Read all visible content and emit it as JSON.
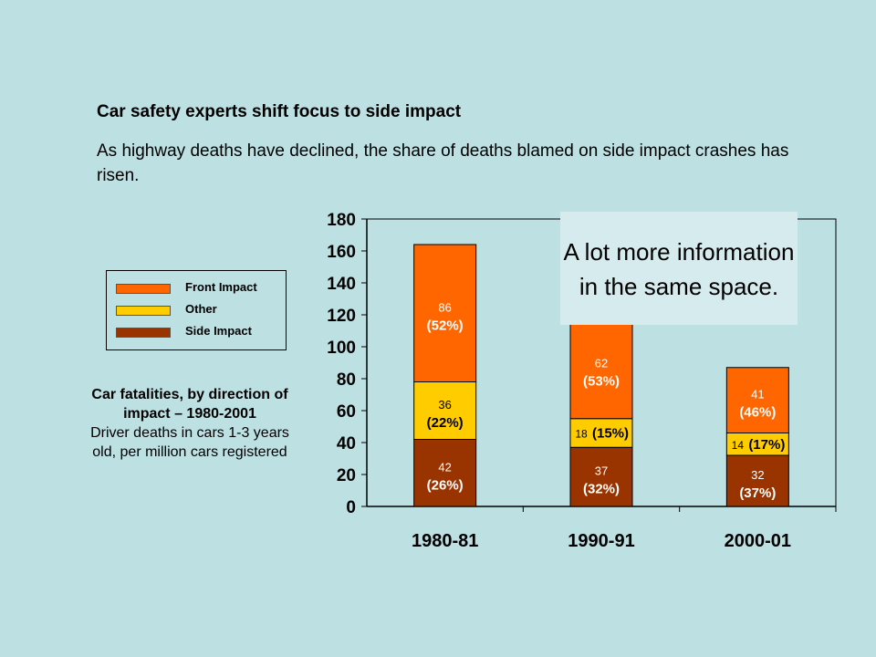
{
  "headline": "Car safety experts shift focus to side impact",
  "subtext": "As highway deaths have declined, the share of deaths blamed on side impact crashes has risen.",
  "legend": [
    {
      "label": "Front Impact",
      "color": "#ff6600"
    },
    {
      "label": "Other",
      "color": "#ffcc00"
    },
    {
      "label": "Side Impact",
      "color": "#993300"
    }
  ],
  "caption": {
    "title": "Car fatalities, by direction of impact – 1980-2001",
    "body": "Driver deaths in cars 1-3 years old, per million cars registered"
  },
  "callout": "A lot more information in the same space.",
  "chart_data": {
    "type": "bar",
    "stacked": true,
    "categories": [
      "1980-81",
      "1990-91",
      "2000-01"
    ],
    "series": [
      {
        "name": "Side Impact",
        "color": "#993300",
        "values": [
          42,
          37,
          32
        ],
        "labels": [
          "42",
          "37",
          "32"
        ],
        "pct_labels": [
          "(26%)",
          "(32%)",
          "(37%)"
        ]
      },
      {
        "name": "Other",
        "color": "#ffcc00",
        "values": [
          36,
          18,
          14
        ],
        "labels": [
          "36",
          "18",
          "14"
        ],
        "pct_labels": [
          "(22%)",
          "(15%)",
          "(17%)"
        ]
      },
      {
        "name": "Front Impact",
        "color": "#ff6600",
        "values": [
          86,
          62,
          41
        ],
        "labels": [
          "86",
          "62",
          "41"
        ],
        "pct_labels": [
          "(52%)",
          "(53%)",
          "(46%)"
        ]
      }
    ],
    "ylim": [
      0,
      180
    ],
    "yticks": [
      "0",
      "20",
      "40",
      "60",
      "80",
      "100",
      "120",
      "140",
      "160",
      "180"
    ],
    "grid": false
  }
}
